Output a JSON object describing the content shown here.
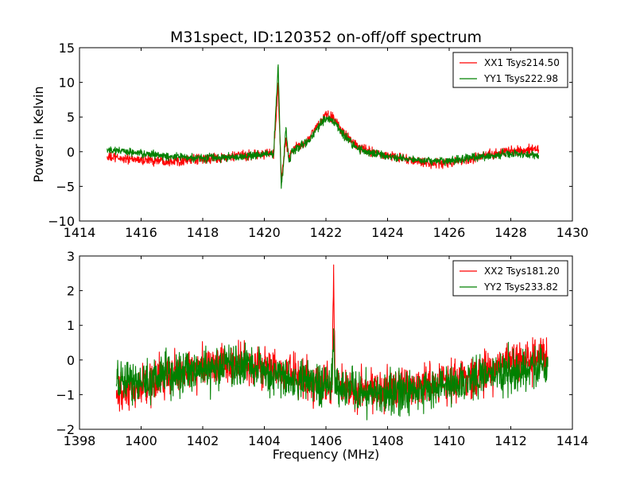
{
  "figure": {
    "title": "M31spect, ID:120352 on-off/off spectrum"
  },
  "chart_data": [
    {
      "type": "line",
      "title": "M31spect, ID:120352 on-off/off spectrum",
      "xlabel": "",
      "ylabel": "Power in Kelvin",
      "xlim": [
        1414,
        1430
      ],
      "ylim": [
        -10,
        15
      ],
      "xticks": [
        "1414",
        "1416",
        "1418",
        "1420",
        "1422",
        "1424",
        "1426",
        "1428",
        "1430"
      ],
      "yticks": [
        "−10",
        "−5",
        "0",
        "5",
        "10",
        "15"
      ],
      "xtick_values": [
        1414,
        1416,
        1418,
        1420,
        1422,
        1424,
        1426,
        1428,
        1430
      ],
      "ytick_values": [
        -10,
        -5,
        0,
        5,
        10,
        15
      ],
      "legend": "top-right",
      "x_range": [
        1414.9,
        1428.9
      ],
      "series": [
        {
          "name": "XX1 Tsys214.50",
          "color": "#ff0000",
          "noise": 0.35,
          "x": [
            1414.9,
            1416.0,
            1417.0,
            1418.0,
            1419.0,
            1419.8,
            1420.3,
            1420.45,
            1420.55,
            1420.62,
            1420.7,
            1420.8,
            1420.9,
            1421.1,
            1421.4,
            1421.7,
            1422.0,
            1422.3,
            1422.6,
            1423.0,
            1423.5,
            1424.0,
            1424.5,
            1425.0,
            1425.5,
            1426.0,
            1426.5,
            1427.0,
            1427.5,
            1428.0,
            1428.9
          ],
          "y": [
            -0.8,
            -1.2,
            -1.3,
            -1.1,
            -0.7,
            -0.4,
            -0.3,
            9.5,
            -4.0,
            -1.5,
            1.8,
            -1.0,
            0.2,
            0.7,
            1.6,
            3.6,
            5.3,
            4.6,
            2.6,
            0.7,
            0.0,
            -0.5,
            -1.0,
            -1.5,
            -1.7,
            -1.6,
            -1.2,
            -0.7,
            -0.2,
            0.1,
            0.3
          ]
        },
        {
          "name": "YY1 Tsys222.98",
          "color": "#008000",
          "noise": 0.3,
          "x": [
            1414.9,
            1415.5,
            1416.0,
            1417.0,
            1418.0,
            1419.0,
            1419.8,
            1420.3,
            1420.45,
            1420.55,
            1420.62,
            1420.7,
            1420.8,
            1420.9,
            1421.1,
            1421.4,
            1421.7,
            1422.0,
            1422.3,
            1422.6,
            1423.0,
            1423.5,
            1424.0,
            1424.5,
            1425.0,
            1425.5,
            1426.0,
            1426.5,
            1427.0,
            1427.5,
            1428.0,
            1428.9
          ],
          "y": [
            0.3,
            0.0,
            -0.3,
            -0.7,
            -0.9,
            -0.8,
            -0.6,
            -0.2,
            12.5,
            -5.3,
            -2.0,
            3.5,
            -1.5,
            0.0,
            0.6,
            1.4,
            3.3,
            4.9,
            4.2,
            2.3,
            0.5,
            -0.3,
            -0.7,
            -1.0,
            -1.2,
            -1.3,
            -1.3,
            -1.0,
            -0.7,
            -0.5,
            -0.3,
            -0.5
          ]
        }
      ]
    },
    {
      "type": "line",
      "title": "",
      "xlabel": "Frequency (MHz)",
      "ylabel": "",
      "xlim": [
        1398,
        1414
      ],
      "ylim": [
        -2,
        3
      ],
      "xticks": [
        "1398",
        "1400",
        "1402",
        "1404",
        "1406",
        "1408",
        "1410",
        "1412",
        "1414"
      ],
      "yticks": [
        "−2",
        "−1",
        "0",
        "1",
        "2",
        "3"
      ],
      "xtick_values": [
        1398,
        1400,
        1402,
        1404,
        1406,
        1408,
        1410,
        1412,
        1414
      ],
      "ytick_values": [
        -2,
        -1,
        0,
        1,
        2,
        3
      ],
      "legend": "top-right",
      "x_range": [
        1399.2,
        1413.2
      ],
      "series": [
        {
          "name": "XX2 Tsys181.20",
          "color": "#ff0000",
          "noise": 0.3,
          "x": [
            1399.2,
            1400.0,
            1401.0,
            1402.0,
            1403.0,
            1404.0,
            1405.0,
            1406.0,
            1406.2,
            1406.25,
            1406.3,
            1407.0,
            1408.0,
            1409.0,
            1410.0,
            1411.0,
            1412.0,
            1412.6,
            1413.2
          ],
          "y": [
            -1.1,
            -0.8,
            -0.4,
            -0.2,
            -0.1,
            -0.2,
            -0.5,
            -0.7,
            -0.7,
            2.55,
            -0.7,
            -0.8,
            -0.8,
            -0.7,
            -0.6,
            -0.4,
            -0.1,
            0.0,
            0.1
          ]
        },
        {
          "name": "YY2 Tsys233.82",
          "color": "#008000",
          "noise": 0.3,
          "x": [
            1399.2,
            1400.0,
            1401.0,
            1402.0,
            1403.0,
            1404.0,
            1405.0,
            1406.0,
            1406.2,
            1406.25,
            1406.3,
            1407.0,
            1408.0,
            1409.0,
            1410.0,
            1411.0,
            1412.0,
            1412.6,
            1413.2
          ],
          "y": [
            -0.7,
            -0.6,
            -0.4,
            -0.3,
            -0.2,
            -0.3,
            -0.6,
            -0.8,
            -0.8,
            0.9,
            -0.8,
            -0.9,
            -1.0,
            -0.9,
            -0.7,
            -0.5,
            -0.3,
            -0.2,
            -0.2
          ]
        }
      ]
    }
  ]
}
